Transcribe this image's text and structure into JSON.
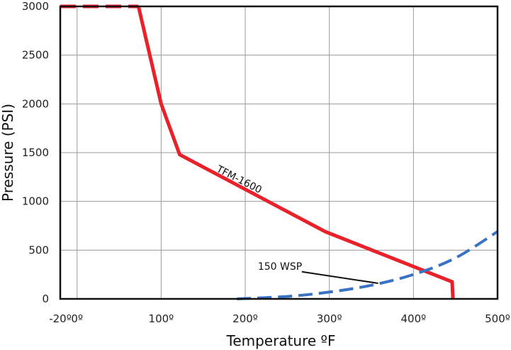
{
  "chart_data": {
    "type": "line",
    "xlabel": "Temperature ºF",
    "ylabel": "Pressure (PSI)",
    "xlim": [
      -20,
      500
    ],
    "ylim": [
      0,
      3000
    ],
    "x_ticks": [
      -20,
      0,
      100,
      200,
      300,
      400,
      500
    ],
    "x_tick_labels": [
      "-20º",
      "0º",
      "100º",
      "200º",
      "300º",
      "400º",
      "500º"
    ],
    "y_ticks": [
      0,
      500,
      1000,
      1500,
      2000,
      2500,
      3000
    ],
    "y_tick_labels": [
      "0",
      "500",
      "1000",
      "1500",
      "2000",
      "2500",
      "3000"
    ],
    "grid": true,
    "series": [
      {
        "name": "TFM-1600",
        "color": "#e8212a",
        "style": "solid",
        "points": [
          {
            "x": -20,
            "y": 3000
          },
          {
            "x": 73,
            "y": 3000
          },
          {
            "x": 100,
            "y": 2000
          },
          {
            "x": 122,
            "y": 1480
          },
          {
            "x": 295,
            "y": 690
          },
          {
            "x": 446,
            "y": 175
          },
          {
            "x": 447,
            "y": 0
          }
        ],
        "dashed_segment_end_x": 73
      },
      {
        "name": "150 WSP",
        "color": "#3a72c4",
        "style": "dashed",
        "points": [
          {
            "x": 190,
            "y": 0
          },
          {
            "x": 250,
            "y": 25
          },
          {
            "x": 300,
            "y": 70
          },
          {
            "x": 350,
            "y": 140
          },
          {
            "x": 400,
            "y": 250
          },
          {
            "x": 450,
            "y": 420
          },
          {
            "x": 500,
            "y": 690
          }
        ]
      }
    ],
    "annotations": [
      {
        "text": "TFM-1600",
        "x": 165,
        "y": 1310,
        "rotate": 27
      },
      {
        "text": "150 WSP",
        "x": 215,
        "y": 300,
        "arrow_to": {
          "x": 358,
          "y": 160
        }
      }
    ]
  }
}
